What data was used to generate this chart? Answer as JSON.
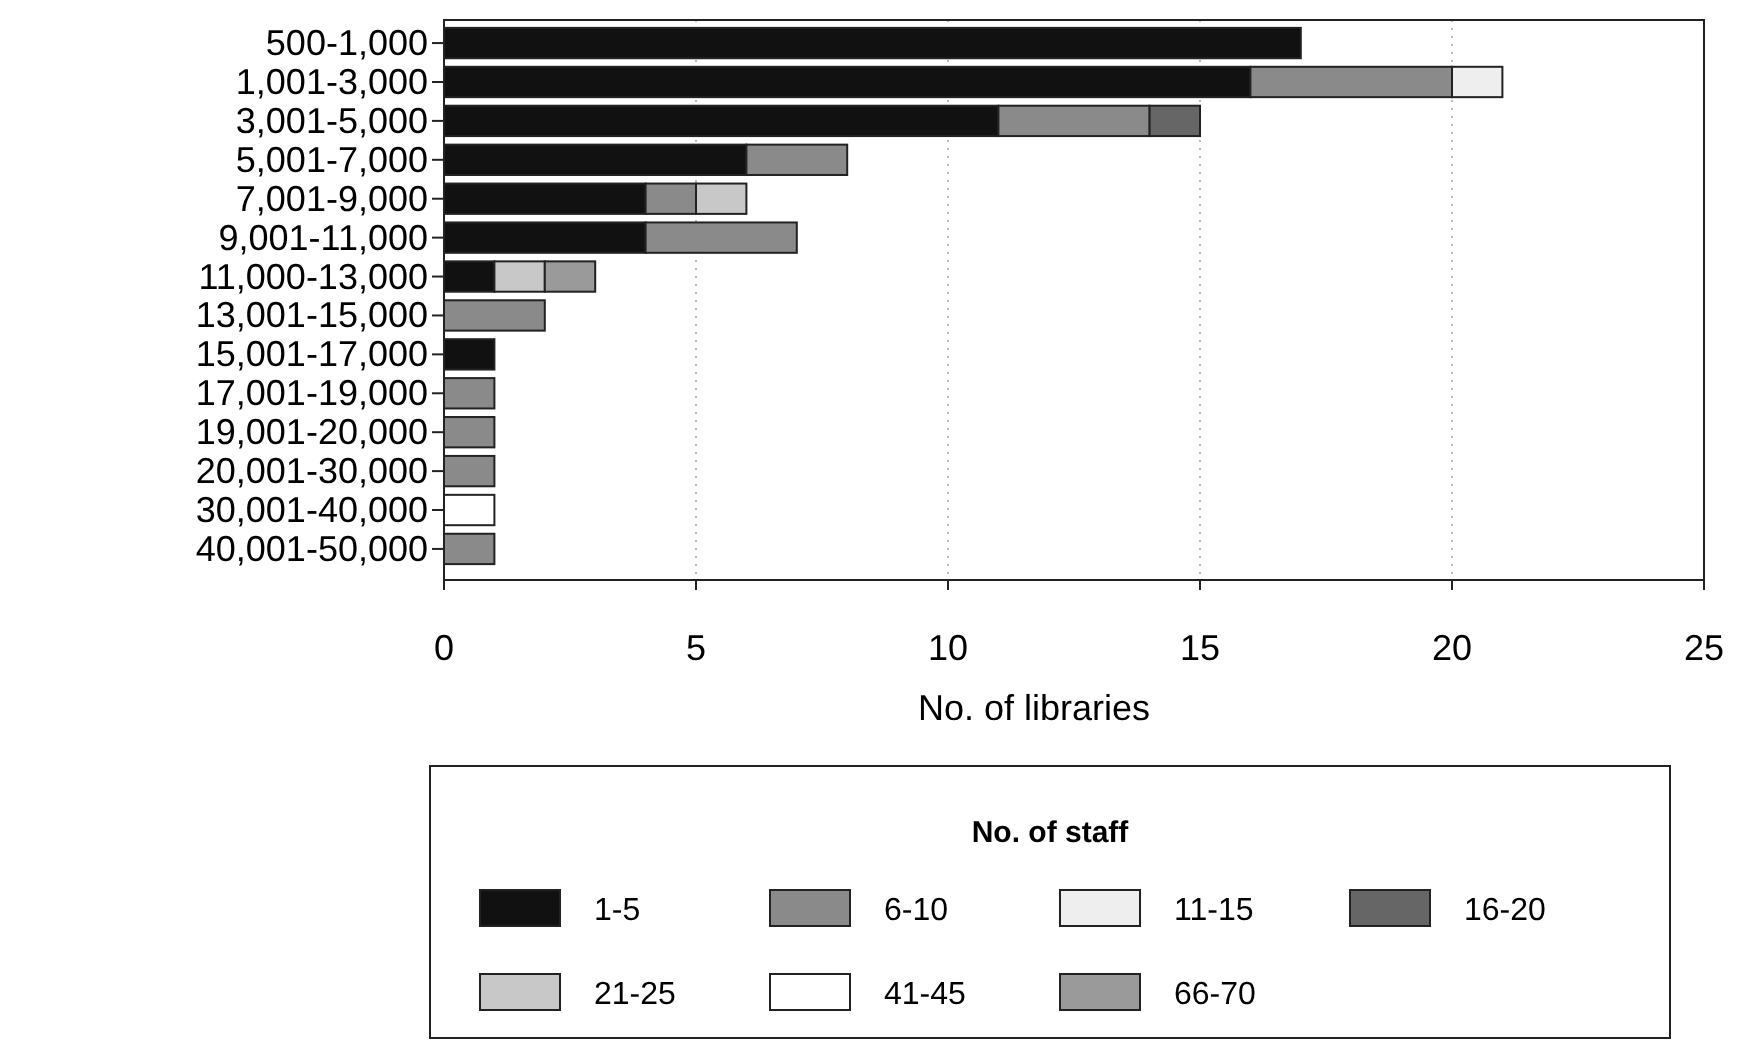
{
  "chart_data": {
    "type": "bar",
    "orientation": "horizontal",
    "stacked": true,
    "categories": [
      "500-1,000",
      "1,001-3,000",
      "3,001-5,000",
      "5,001-7,000",
      "7,001-9,000",
      "9,001-11,000",
      "11,000-13,000",
      "13,001-15,000",
      "15,001-17,000",
      "17,001-19,000",
      "19,001-20,000",
      "20,001-30,000",
      "30,001-40,000",
      "40,001-50,000"
    ],
    "series": [
      {
        "name": "1-5",
        "color": "#111111",
        "values": [
          17,
          16,
          11,
          6,
          4,
          4,
          1,
          null,
          1,
          null,
          null,
          null,
          null,
          null
        ]
      },
      {
        "name": "6-10",
        "color": "#8a8a8a",
        "values": [
          null,
          4,
          3,
          2,
          1,
          3,
          null,
          2,
          null,
          1,
          1,
          1,
          null,
          1
        ]
      },
      {
        "name": "11-15",
        "color": "#eeeeee",
        "values": [
          null,
          1,
          null,
          null,
          null,
          null,
          null,
          null,
          null,
          null,
          null,
          null,
          null,
          null
        ]
      },
      {
        "name": "16-20",
        "color": "#666666",
        "values": [
          null,
          null,
          1,
          null,
          null,
          null,
          null,
          null,
          null,
          null,
          null,
          null,
          null,
          null
        ]
      },
      {
        "name": "21-25",
        "color": "#c8c8c8",
        "values": [
          null,
          null,
          null,
          null,
          1,
          null,
          1,
          null,
          null,
          null,
          null,
          null,
          null,
          null
        ]
      },
      {
        "name": "41-45",
        "color": "#ffffff",
        "values": [
          null,
          null,
          null,
          null,
          null,
          null,
          null,
          null,
          null,
          null,
          null,
          null,
          1,
          null
        ]
      },
      {
        "name": "66-70",
        "color": "#9a9a9a",
        "values": [
          null,
          null,
          null,
          null,
          null,
          null,
          1,
          null,
          null,
          null,
          null,
          null,
          null,
          null
        ]
      }
    ],
    "xlim": [
      0,
      25
    ],
    "xticks": [
      0,
      5,
      10,
      15,
      20,
      25
    ],
    "xlabel": "No. of libraries",
    "legend_title": "No. of staff",
    "legend": "bottom",
    "grid": "x"
  }
}
